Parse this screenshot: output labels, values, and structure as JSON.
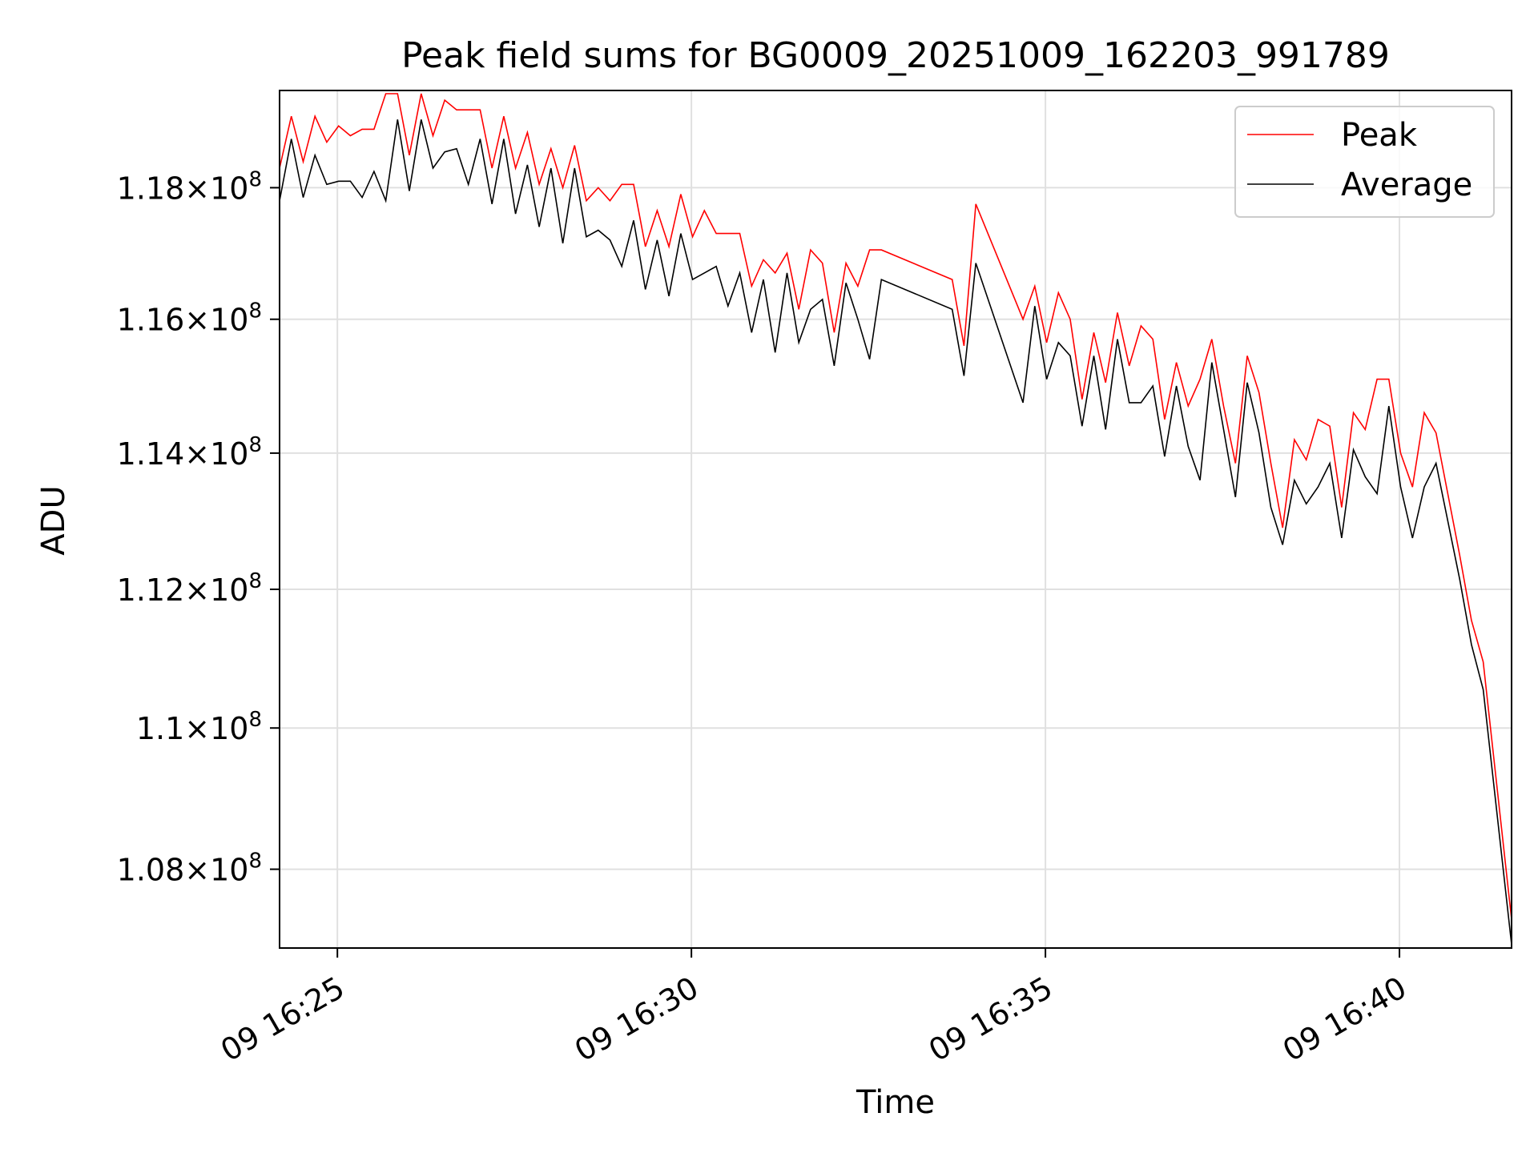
{
  "chart_data": {
    "type": "line",
    "title": "Peak field sums for BG0009_20251009_162203_991789",
    "xlabel": "Time",
    "ylabel": "ADU",
    "x_unit": "time (09 hh:mm:ss)",
    "xlim": [
      "16:24:11",
      "16:41:35"
    ],
    "ylim": [
      106900000,
      119500000
    ],
    "y_scale": "log",
    "grid": true,
    "legend_position": "upper right",
    "x_ticks": [
      {
        "value": "16:25:00",
        "label": "09 16:25"
      },
      {
        "value": "16:30:00",
        "label": "09 16:30"
      },
      {
        "value": "16:35:00",
        "label": "09 16:35"
      },
      {
        "value": "16:40:00",
        "label": "09 16:40"
      }
    ],
    "y_ticks": [
      {
        "value": 108000000,
        "mantissa": "1.08",
        "exponent": "8"
      },
      {
        "value": 110000000,
        "mantissa": "1.1",
        "exponent": "8"
      },
      {
        "value": 112000000,
        "mantissa": "1.12",
        "exponent": "8"
      },
      {
        "value": 114000000,
        "mantissa": "1.14",
        "exponent": "8"
      },
      {
        "value": 116000000,
        "mantissa": "1.16",
        "exponent": "8"
      },
      {
        "value": 118000000,
        "mantissa": "1.18",
        "exponent": "8"
      }
    ],
    "series": [
      {
        "name": "Peak",
        "color": "#ff0000",
        "points": [
          [
            "16:24:11",
            118.3
          ],
          [
            "16:24:21",
            119.1
          ],
          [
            "16:24:31",
            118.4
          ],
          [
            "16:24:41",
            119.1
          ],
          [
            "16:24:51",
            118.7
          ],
          [
            "16:25:01",
            118.95
          ],
          [
            "16:25:11",
            118.8
          ],
          [
            "16:25:21",
            118.9
          ],
          [
            "16:25:31",
            118.9
          ],
          [
            "16:25:41",
            119.45
          ],
          [
            "16:25:51",
            119.45
          ],
          [
            "16:26:01",
            118.5
          ],
          [
            "16:26:11",
            119.45
          ],
          [
            "16:26:21",
            118.8
          ],
          [
            "16:26:31",
            119.35
          ],
          [
            "16:26:41",
            119.2
          ],
          [
            "16:26:51",
            119.2
          ],
          [
            "16:27:01",
            119.2
          ],
          [
            "16:27:11",
            118.3
          ],
          [
            "16:27:21",
            119.1
          ],
          [
            "16:27:31",
            118.3
          ],
          [
            "16:27:41",
            118.85
          ],
          [
            "16:27:51",
            118.05
          ],
          [
            "16:28:01",
            118.6
          ],
          [
            "16:28:11",
            118.0
          ],
          [
            "16:28:21",
            118.65
          ],
          [
            "16:28:31",
            117.8
          ],
          [
            "16:28:41",
            118.0
          ],
          [
            "16:28:51",
            117.8
          ],
          [
            "16:29:01",
            118.05
          ],
          [
            "16:29:11",
            118.05
          ],
          [
            "16:29:21",
            117.1
          ],
          [
            "16:29:31",
            117.65
          ],
          [
            "16:29:41",
            117.1
          ],
          [
            "16:29:51",
            117.9
          ],
          [
            "16:30:01",
            117.25
          ],
          [
            "16:30:11",
            117.65
          ],
          [
            "16:30:21",
            117.3
          ],
          [
            "16:30:31",
            117.3
          ],
          [
            "16:30:41",
            117.3
          ],
          [
            "16:30:51",
            116.5
          ],
          [
            "16:31:01",
            116.9
          ],
          [
            "16:31:11",
            116.7
          ],
          [
            "16:31:21",
            117.0
          ],
          [
            "16:31:31",
            116.15
          ],
          [
            "16:31:41",
            117.05
          ],
          [
            "16:31:51",
            116.85
          ],
          [
            "16:32:01",
            115.8
          ],
          [
            "16:32:11",
            116.85
          ],
          [
            "16:32:21",
            116.5
          ],
          [
            "16:32:31",
            117.05
          ],
          [
            "16:32:41",
            117.05
          ],
          [
            "16:33:41",
            116.6
          ],
          [
            "16:33:51",
            115.6
          ],
          [
            "16:34:01",
            117.75
          ],
          [
            "16:34:41",
            116.0
          ],
          [
            "16:34:51",
            116.5
          ],
          [
            "16:35:01",
            115.65
          ],
          [
            "16:35:11",
            116.4
          ],
          [
            "16:35:21",
            116.0
          ],
          [
            "16:35:31",
            114.8
          ],
          [
            "16:35:41",
            115.8
          ],
          [
            "16:35:51",
            115.05
          ],
          [
            "16:36:01",
            116.1
          ],
          [
            "16:36:11",
            115.3
          ],
          [
            "16:36:21",
            115.9
          ],
          [
            "16:36:31",
            115.7
          ],
          [
            "16:36:41",
            114.5
          ],
          [
            "16:36:51",
            115.35
          ],
          [
            "16:37:01",
            114.7
          ],
          [
            "16:37:11",
            115.1
          ],
          [
            "16:37:21",
            115.7
          ],
          [
            "16:37:31",
            114.7
          ],
          [
            "16:37:41",
            113.85
          ],
          [
            "16:37:51",
            115.45
          ],
          [
            "16:38:01",
            114.9
          ],
          [
            "16:38:11",
            113.85
          ],
          [
            "16:38:21",
            112.9
          ],
          [
            "16:38:31",
            114.2
          ],
          [
            "16:38:41",
            113.9
          ],
          [
            "16:38:51",
            114.5
          ],
          [
            "16:39:01",
            114.4
          ],
          [
            "16:39:11",
            113.2
          ],
          [
            "16:39:21",
            114.6
          ],
          [
            "16:39:31",
            114.35
          ],
          [
            "16:39:41",
            115.1
          ],
          [
            "16:39:51",
            115.1
          ],
          [
            "16:40:01",
            114.0
          ],
          [
            "16:40:11",
            113.5
          ],
          [
            "16:40:21",
            114.6
          ],
          [
            "16:40:31",
            114.3
          ],
          [
            "16:40:51",
            112.5
          ],
          [
            "16:41:01",
            111.55
          ],
          [
            "16:41:11",
            110.95
          ],
          [
            "16:41:35",
            107.3
          ]
        ]
      },
      {
        "name": "Average",
        "color": "#000000",
        "points": [
          [
            "16:24:11",
            117.8
          ],
          [
            "16:24:21",
            118.75
          ],
          [
            "16:24:31",
            117.85
          ],
          [
            "16:24:41",
            118.5
          ],
          [
            "16:24:51",
            118.05
          ],
          [
            "16:25:01",
            118.1
          ],
          [
            "16:25:11",
            118.1
          ],
          [
            "16:25:21",
            117.85
          ],
          [
            "16:25:31",
            118.25
          ],
          [
            "16:25:41",
            117.8
          ],
          [
            "16:25:51",
            119.05
          ],
          [
            "16:26:01",
            117.95
          ],
          [
            "16:26:11",
            119.05
          ],
          [
            "16:26:21",
            118.3
          ],
          [
            "16:26:31",
            118.55
          ],
          [
            "16:26:41",
            118.6
          ],
          [
            "16:26:51",
            118.05
          ],
          [
            "16:27:01",
            118.75
          ],
          [
            "16:27:11",
            117.75
          ],
          [
            "16:27:21",
            118.75
          ],
          [
            "16:27:31",
            117.6
          ],
          [
            "16:27:41",
            118.35
          ],
          [
            "16:27:51",
            117.4
          ],
          [
            "16:28:01",
            118.3
          ],
          [
            "16:28:11",
            117.15
          ],
          [
            "16:28:21",
            118.3
          ],
          [
            "16:28:31",
            117.25
          ],
          [
            "16:28:41",
            117.35
          ],
          [
            "16:28:51",
            117.2
          ],
          [
            "16:29:01",
            116.8
          ],
          [
            "16:29:11",
            117.5
          ],
          [
            "16:29:21",
            116.45
          ],
          [
            "16:29:31",
            117.2
          ],
          [
            "16:29:41",
            116.35
          ],
          [
            "16:29:51",
            117.3
          ],
          [
            "16:30:01",
            116.6
          ],
          [
            "16:30:11",
            116.7
          ],
          [
            "16:30:21",
            116.8
          ],
          [
            "16:30:31",
            116.2
          ],
          [
            "16:30:41",
            116.7
          ],
          [
            "16:30:51",
            115.8
          ],
          [
            "16:31:01",
            116.6
          ],
          [
            "16:31:11",
            115.5
          ],
          [
            "16:31:21",
            116.7
          ],
          [
            "16:31:31",
            115.65
          ],
          [
            "16:31:41",
            116.15
          ],
          [
            "16:31:51",
            116.3
          ],
          [
            "16:32:01",
            115.3
          ],
          [
            "16:32:11",
            116.55
          ],
          [
            "16:32:21",
            116.0
          ],
          [
            "16:32:31",
            115.4
          ],
          [
            "16:32:41",
            116.6
          ],
          [
            "16:33:41",
            116.15
          ],
          [
            "16:33:51",
            115.15
          ],
          [
            "16:34:01",
            116.85
          ],
          [
            "16:34:41",
            114.75
          ],
          [
            "16:34:51",
            116.2
          ],
          [
            "16:35:01",
            115.1
          ],
          [
            "16:35:11",
            115.65
          ],
          [
            "16:35:21",
            115.45
          ],
          [
            "16:35:31",
            114.4
          ],
          [
            "16:35:41",
            115.45
          ],
          [
            "16:35:51",
            114.35
          ],
          [
            "16:36:01",
            115.7
          ],
          [
            "16:36:11",
            114.75
          ],
          [
            "16:36:21",
            114.75
          ],
          [
            "16:36:31",
            115.0
          ],
          [
            "16:36:41",
            113.95
          ],
          [
            "16:36:51",
            115.0
          ],
          [
            "16:37:01",
            114.1
          ],
          [
            "16:37:11",
            113.6
          ],
          [
            "16:37:21",
            115.35
          ],
          [
            "16:37:31",
            114.35
          ],
          [
            "16:37:41",
            113.35
          ],
          [
            "16:37:51",
            115.05
          ],
          [
            "16:38:01",
            114.3
          ],
          [
            "16:38:11",
            113.2
          ],
          [
            "16:38:21",
            112.65
          ],
          [
            "16:38:31",
            113.6
          ],
          [
            "16:38:41",
            113.25
          ],
          [
            "16:38:51",
            113.5
          ],
          [
            "16:39:01",
            113.85
          ],
          [
            "16:39:11",
            112.75
          ],
          [
            "16:39:21",
            114.05
          ],
          [
            "16:39:31",
            113.65
          ],
          [
            "16:39:41",
            113.4
          ],
          [
            "16:39:51",
            114.7
          ],
          [
            "16:40:01",
            113.5
          ],
          [
            "16:40:11",
            112.75
          ],
          [
            "16:40:21",
            113.5
          ],
          [
            "16:40:31",
            113.85
          ],
          [
            "16:40:51",
            112.15
          ],
          [
            "16:41:01",
            111.2
          ],
          [
            "16:41:11",
            110.55
          ],
          [
            "16:41:35",
            106.95
          ]
        ]
      }
    ]
  }
}
